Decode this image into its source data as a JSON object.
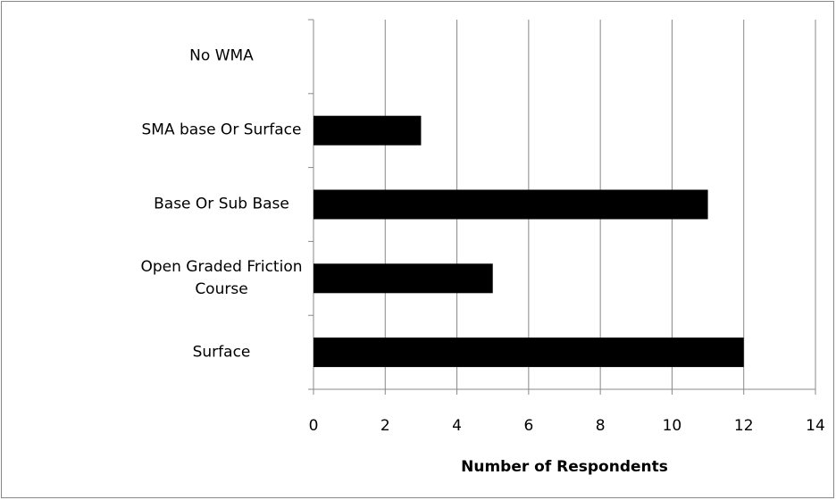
{
  "chart_data": {
    "type": "bar",
    "orientation": "horizontal",
    "categories": [
      "No WMA",
      "SMA base Or Surface",
      "Base Or Sub Base",
      "Open Graded Friction Course",
      "Surface"
    ],
    "values": [
      0,
      3,
      11,
      5,
      12
    ],
    "color": "#000000",
    "xlabel": "Number of Respondents",
    "xlim": [
      0,
      14
    ],
    "xticks": [
      0,
      2,
      4,
      6,
      8,
      10,
      12,
      14
    ],
    "grid": true
  }
}
